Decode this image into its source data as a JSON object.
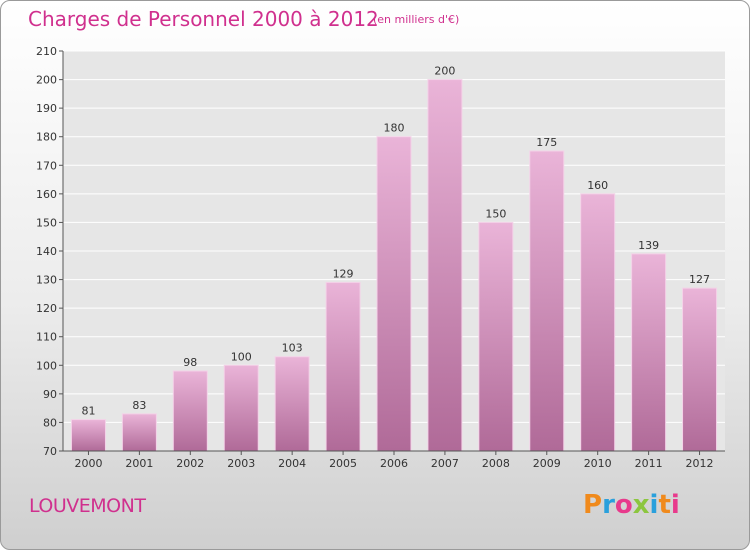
{
  "header": {
    "title": "Charges de Personnel 2000 à 2012",
    "subtitle": "(en milliers d'€)"
  },
  "footer": {
    "place": "LOUVEMONT",
    "logo": "Proxiti",
    "logo_colors": [
      "#f08a1c",
      "#2aa0dc",
      "#e83a8c",
      "#8cc63f",
      "#2aa0dc",
      "#f08a1c",
      "#e83a8c"
    ]
  },
  "colors": {
    "accent": "#d0308e",
    "bar_light": "#eab4d8",
    "bar_dark": "#b06a98",
    "plot_bg": "#e6e6e6",
    "grid": "#ffffff"
  },
  "chart_data": {
    "type": "bar",
    "categories": [
      "2000",
      "2001",
      "2002",
      "2003",
      "2004",
      "2005",
      "2006",
      "2007",
      "2008",
      "2009",
      "2010",
      "2011",
      "2012"
    ],
    "values": [
      81,
      83,
      98,
      100,
      103,
      129,
      180,
      200,
      150,
      175,
      160,
      139,
      127
    ],
    "ylim": [
      70,
      210
    ],
    "yticks": [
      70,
      80,
      90,
      100,
      110,
      120,
      130,
      140,
      150,
      160,
      170,
      180,
      190,
      200,
      210
    ],
    "grid": true,
    "data_labels": true
  }
}
